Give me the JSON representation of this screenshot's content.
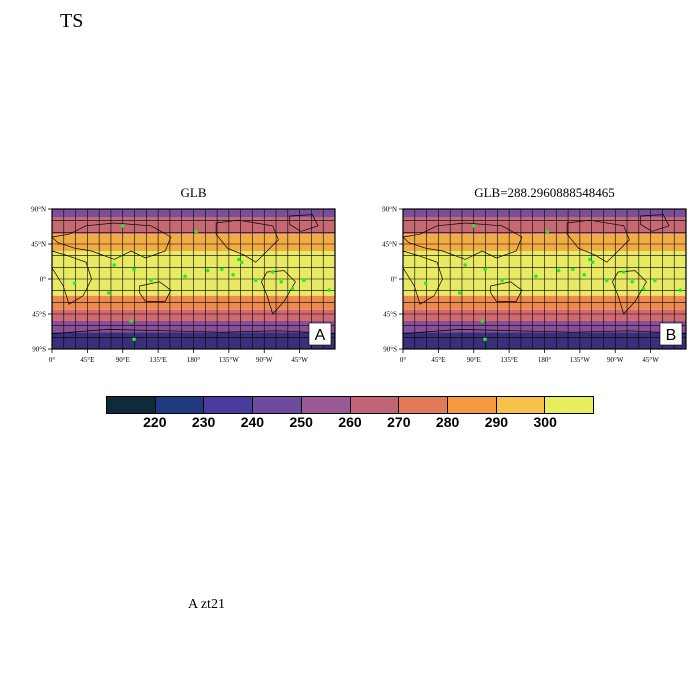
{
  "title": "TS",
  "footer": "A  zt21",
  "panels": [
    {
      "title": "GLB",
      "tag": "A"
    },
    {
      "title": "GLB=288.2960888548465",
      "tag": "B"
    }
  ],
  "lat_ticks": [
    "90°N",
    "45°N",
    "0°",
    "45°S",
    "90°S"
  ],
  "lon_ticks": [
    "0°",
    "45°E",
    "90°E",
    "135°E",
    "180°",
    "135°W",
    "90°W",
    "45°W"
  ],
  "colorbar": {
    "labels": [
      "220",
      "230",
      "240",
      "250",
      "260",
      "270",
      "280",
      "290",
      "300"
    ],
    "colors": [
      "#0f2a3a",
      "#1f3a80",
      "#4a3c9c",
      "#6e4a9c",
      "#9a5a98",
      "#c26478",
      "#e27a5a",
      "#f59a40",
      "#f7c24a",
      "#e6ee5c"
    ]
  },
  "map_colors": {
    "polar_south": "#3a2f78",
    "south_mid": "#8a4f98",
    "south_sub": "#d06a70",
    "south_subtrop": "#ee8a4e",
    "tropics": "#e8ea66",
    "north_subtrop": "#f2ac46",
    "north_mid": "#c56a72",
    "north_high": "#7a4e98",
    "marker": "#22ee22"
  }
}
